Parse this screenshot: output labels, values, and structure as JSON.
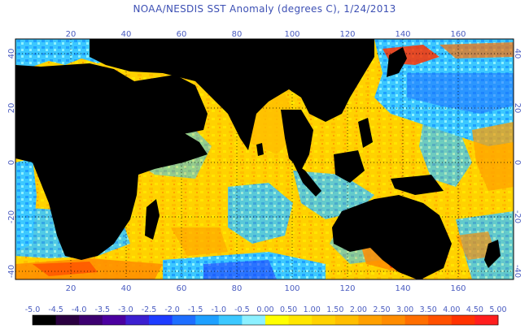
{
  "title": "NOAA/NESDIS SST Anomaly (degrees C), 1/24/2013",
  "lon_ticks": [
    "20",
    "40",
    "60",
    "80",
    "100",
    "120",
    "140",
    "160"
  ],
  "lat_ticks_left": [
    "40",
    "20",
    "0",
    "-20",
    "-40"
  ],
  "lat_ticks_right": [
    "40",
    "20",
    "0",
    "-20",
    "-40"
  ],
  "colorbar": {
    "labels": [
      "-5.0",
      "-4.5",
      "-4.0",
      "-3.5",
      "-3.0",
      "-2.5",
      "-2.0",
      "-1.5",
      "-1.0",
      "-0.5",
      "0.00",
      "0.50",
      "1.00",
      "1.50",
      "2.00",
      "2.50",
      "3.00",
      "3.50",
      "4.00",
      "4.50",
      "5.00"
    ],
    "colors": [
      "#000000",
      "#2a0040",
      "#3c0070",
      "#4b00a0",
      "#3c1fd0",
      "#1e3cff",
      "#1e6eff",
      "#1ea0ff",
      "#3cc8ff",
      "#8cf0ff",
      "#ffff00",
      "#ffe600",
      "#ffd200",
      "#ffbe00",
      "#ffa000",
      "#ff8c00",
      "#ff6e00",
      "#ff5000",
      "#ff3200",
      "#ff1e1e"
    ]
  }
}
